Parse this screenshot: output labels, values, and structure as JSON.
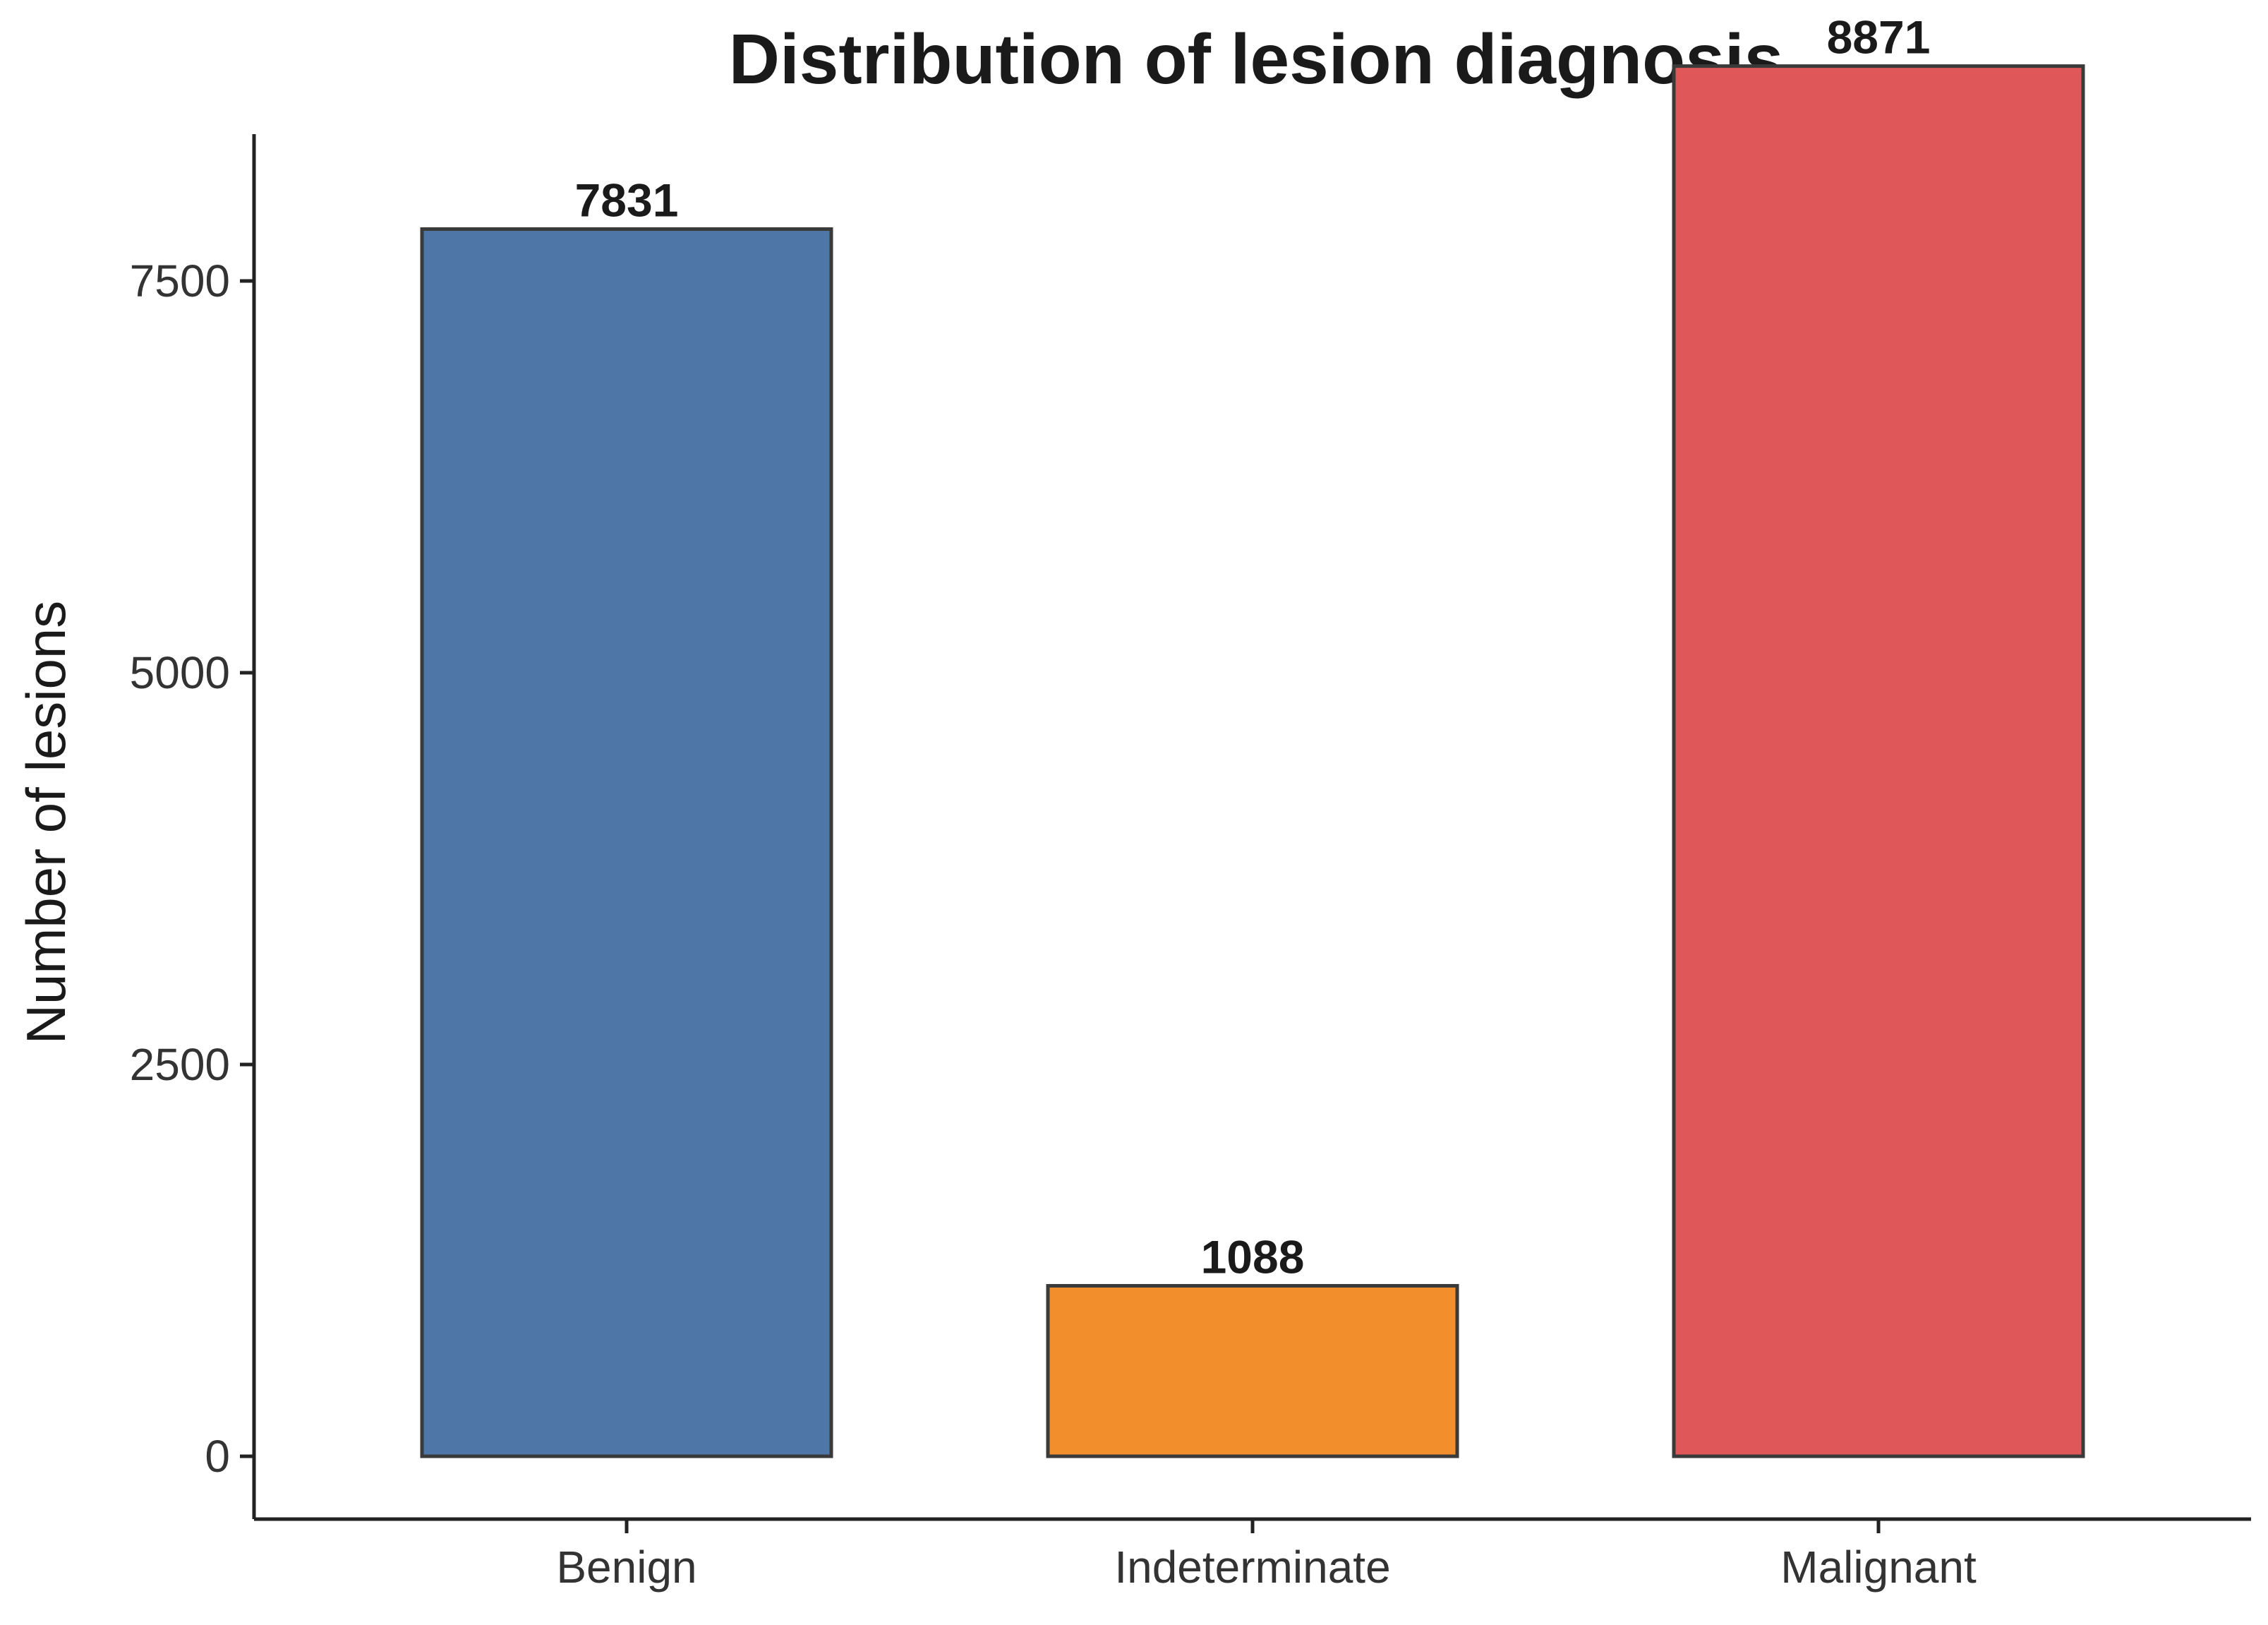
{
  "chart_data": {
    "type": "bar",
    "title": "Distribution of lesion diagnosis",
    "xlabel": "",
    "ylabel": "Number of lesions",
    "categories": [
      "Benign",
      "Indeterminate",
      "Malignant"
    ],
    "values": [
      7831,
      1088,
      8871
    ],
    "data_labels": [
      "7831",
      "1088",
      "8871"
    ],
    "colors": [
      "#4e77a8",
      "#f28e2b",
      "#e05759"
    ],
    "y_ticks": [
      0,
      2500,
      5000,
      7500
    ],
    "y_tick_labels": [
      "0",
      "2500",
      "5000",
      "7500"
    ],
    "ylim": [
      -450,
      9700
    ],
    "grid": false,
    "legend": "none"
  }
}
